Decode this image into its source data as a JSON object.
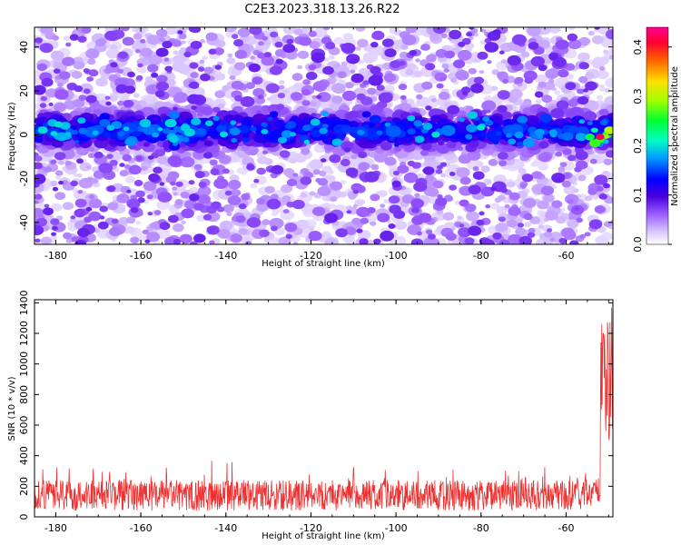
{
  "chart_data": [
    {
      "type": "heatmap",
      "title": "C2E3.2023.318.13.26.R22",
      "xlabel": "Height of straight line (km)",
      "ylabel": "Frequency (Hz)",
      "xlim": [
        -185,
        -49
      ],
      "ylim": [
        -50,
        49
      ],
      "xticks": [
        "-180",
        "-160",
        "-140",
        "-120",
        "-100",
        "-80",
        "-60"
      ],
      "yticks": [
        "-40",
        "-20",
        "0",
        "20",
        "40"
      ],
      "colorbar": {
        "label": "Normalized spectral amplitude",
        "range": [
          0,
          0.44
        ],
        "ticks": [
          "0.0",
          "0.1",
          "0.2",
          "0.3",
          "0.4"
        ],
        "colors": [
          "#ffffff",
          "#a070ff",
          "#5000e0",
          "#0000ff",
          "#00d0ff",
          "#00ff60",
          "#c0ff00",
          "#ffd000",
          "#ff3000",
          "#ff0080"
        ]
      },
      "features": {
        "band_center_hz": 2,
        "band_halfwidth_hz": 10,
        "peak_amplitude": 0.42,
        "peak_height_km": -52,
        "peak_frequency_hz": -1
      }
    },
    {
      "type": "line",
      "xlabel": "Height of straight line (km)",
      "ylabel": "SNR (10 * v/v)",
      "xlim": [
        -185,
        -49
      ],
      "ylim": [
        0,
        1420
      ],
      "xticks": [
        "-180",
        "-160",
        "-140",
        "-120",
        "-100",
        "-80",
        "-60"
      ],
      "yticks": [
        "0",
        "200",
        "400",
        "600",
        "800",
        "1000",
        "1200",
        "1400"
      ],
      "line_color": "#ee3030",
      "series": [
        {
          "name": "SNR",
          "baseline_range": [
            0,
            300
          ],
          "typical_max": 420,
          "end_spike_height_km": -50.5,
          "end_spike_max": 1410
        }
      ]
    }
  ]
}
